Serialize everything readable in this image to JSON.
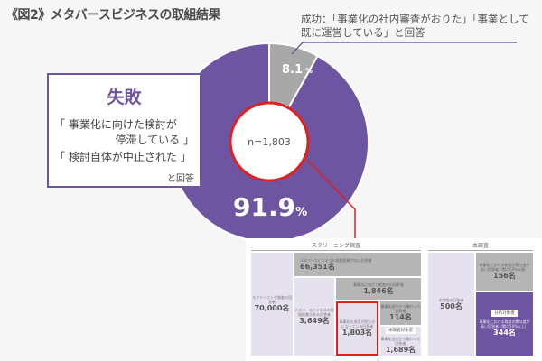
{
  "title": "《図2》メタバースビジネスの取組結果",
  "success_callout": "成功：「事業化の社内審査がおりた」「事業として既に運営している」と回答",
  "failure": {
    "title": "失敗",
    "line1": "「 事業化に向けた検討が",
    "line2": "停滞している 」",
    "line3": "「 検討自体が中止された 」",
    "suffix": "と回答"
  },
  "chart_data": {
    "type": "pie",
    "slices": [
      {
        "name": "成功",
        "value": 8.1,
        "label": "8.1",
        "unit": "%",
        "color": "#a8a8a8"
      },
      {
        "name": "失敗",
        "value": 91.9,
        "label": "91.9",
        "unit": "%",
        "color": "#6e55a1"
      }
    ],
    "center_label": "n=1,803"
  },
  "screening": {
    "title": "スクリーニング調査",
    "total": {
      "label": "スクリーニング調査の回答者",
      "value": "70,000名"
    },
    "no_exp": {
      "label": "メタバースビジネスの取組経験がない回答者",
      "value": "66,351名"
    },
    "exp": {
      "label": "メタバースビジネスの取組経験がある回答者",
      "value": "3,649名"
    },
    "in_progress": {
      "label": "事業化に向けて推進中の回答者",
      "value": "1,846名"
    },
    "decided": {
      "label": "事業化の成否が明らかになっている回答者",
      "value": "1,803名"
    },
    "midway": {
      "label": "事業化途中から携わった回答者",
      "value": "114名"
    },
    "from_start": {
      "tag": "本調査対象者",
      "label": "事業化当初から携わった回答者",
      "value": "1,689名"
    }
  },
  "main_survey": {
    "title": "本調査",
    "total": {
      "label": "本調査の回答者",
      "value": "500名"
    },
    "low": {
      "label": "事業化における取組の関与度が低い回答者（関与50%未満）",
      "value": "156名"
    },
    "high": {
      "tag": "分析対象者",
      "label": "事業化における取組の関与度が高い回答者（関与50%以上）",
      "value": "344名"
    }
  }
}
